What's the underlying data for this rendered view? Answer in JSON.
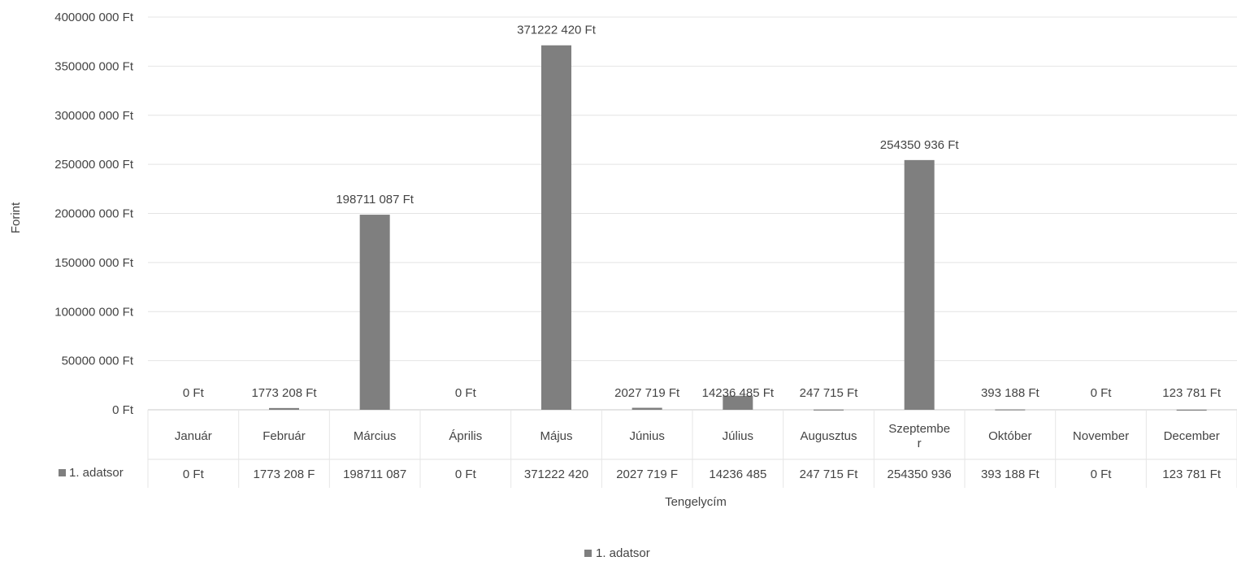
{
  "chart_data": {
    "type": "bar",
    "categories": [
      "Január",
      "Február",
      "Március",
      "Április",
      "Május",
      "Június",
      "Július",
      "Augusztus",
      "Szeptember",
      "Október",
      "November",
      "December"
    ],
    "category_display": [
      [
        "Január"
      ],
      [
        "Február"
      ],
      [
        "Március"
      ],
      [
        "Április"
      ],
      [
        "Május"
      ],
      [
        "Június"
      ],
      [
        "Július"
      ],
      [
        "Augusztus"
      ],
      [
        "Szeptembe",
        "r"
      ],
      [
        "Október"
      ],
      [
        "November"
      ],
      [
        "December"
      ]
    ],
    "series": [
      {
        "name": "1. adatsor",
        "color": "#7f7f7f",
        "values": [
          0,
          1773208,
          198711087,
          0,
          371222420,
          2027719,
          14236485,
          247715,
          254350936,
          393188,
          0,
          123781
        ],
        "data_labels": [
          "0 Ft",
          "1773 208 Ft",
          "198711 087 Ft",
          "0 Ft",
          "371222 420 Ft",
          "2027 719 Ft",
          "14236 485 Ft",
          "247 715 Ft",
          "254350 936 Ft",
          "393 188 Ft",
          "0 Ft",
          "123 781 Ft"
        ],
        "table_labels": [
          "0 Ft",
          "1773 208 F",
          "198711 087",
          "0 Ft",
          "371222 420",
          "2027 719 F",
          "14236 485",
          "247 715 Ft",
          "254350 936",
          "393 188 Ft",
          "0 Ft",
          "123 781 Ft"
        ]
      }
    ],
    "y_ticks": [
      0,
      50000000,
      100000000,
      150000000,
      200000000,
      250000000,
      300000000,
      350000000,
      400000000
    ],
    "y_tick_labels": [
      "0 Ft",
      "50000 000 Ft",
      "100000 000 Ft",
      "150000 000 Ft",
      "200000 000 Ft",
      "250000 000 Ft",
      "300000 000 Ft",
      "350000 000 Ft",
      "400000 000 Ft"
    ],
    "ylim": [
      0,
      400000000
    ],
    "ylabel": "Forint",
    "xlabel": "Tengelycím",
    "grid": true,
    "legend": {
      "position": "bottom",
      "entries": [
        "1. adatsor"
      ]
    },
    "data_table": true
  }
}
